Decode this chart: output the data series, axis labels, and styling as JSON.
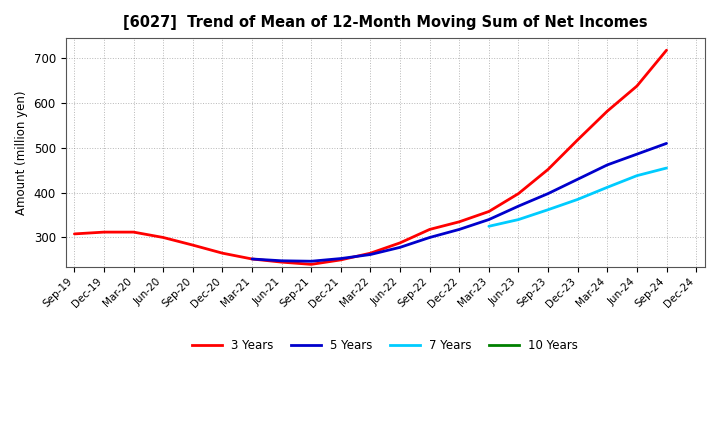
{
  "title": "[6027]  Trend of Mean of 12-Month Moving Sum of Net Incomes",
  "ylabel": "Amount (million yen)",
  "background_color": "#ffffff",
  "grid_color": "#888888",
  "x_labels": [
    "Sep-19",
    "Dec-19",
    "Mar-20",
    "Jun-20",
    "Sep-20",
    "Dec-20",
    "Mar-21",
    "Jun-21",
    "Sep-21",
    "Dec-21",
    "Mar-22",
    "Jun-22",
    "Sep-22",
    "Dec-22",
    "Mar-23",
    "Jun-23",
    "Sep-23",
    "Dec-23",
    "Mar-24",
    "Jun-24",
    "Sep-24",
    "Dec-24"
  ],
  "ylim": [
    235,
    745
  ],
  "yticks": [
    300,
    400,
    500,
    600,
    700
  ],
  "series": [
    {
      "label": "3 Years",
      "color": "#ff0000",
      "data": [
        308,
        312,
        312,
        300,
        283,
        265,
        252,
        245,
        240,
        250,
        265,
        288,
        318,
        335,
        358,
        398,
        452,
        518,
        582,
        638,
        718,
        null
      ]
    },
    {
      "label": "5 Years",
      "color": "#0000cc",
      "data": [
        null,
        null,
        null,
        null,
        null,
        null,
        252,
        248,
        247,
        253,
        262,
        278,
        300,
        318,
        340,
        370,
        398,
        430,
        462,
        486,
        510,
        null
      ]
    },
    {
      "label": "7 Years",
      "color": "#00ccff",
      "data": [
        null,
        null,
        null,
        null,
        null,
        null,
        null,
        null,
        null,
        null,
        null,
        null,
        null,
        null,
        325,
        340,
        362,
        385,
        412,
        438,
        455,
        null
      ]
    },
    {
      "label": "10 Years",
      "color": "#008000",
      "data": [
        null,
        null,
        null,
        null,
        null,
        null,
        null,
        null,
        null,
        null,
        null,
        null,
        null,
        null,
        null,
        null,
        null,
        null,
        null,
        null,
        null,
        null
      ]
    }
  ]
}
